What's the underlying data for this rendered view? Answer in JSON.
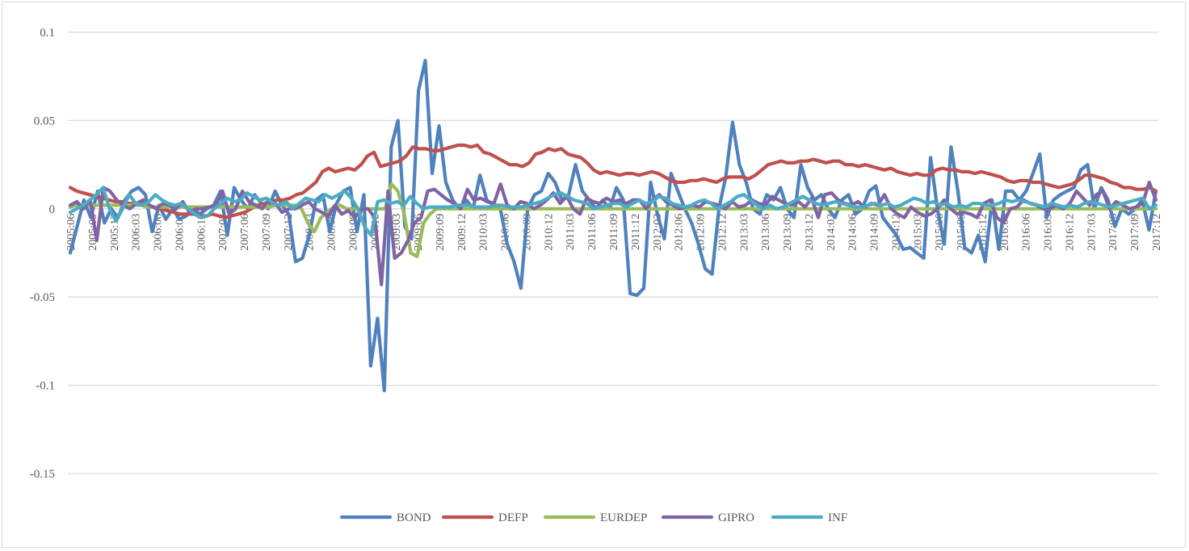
{
  "chart_data": {
    "type": "line",
    "title": "",
    "xlabel": "",
    "ylabel": "",
    "ylim": [
      -0.15,
      0.1
    ],
    "yticks": [
      "0.1",
      "0.05",
      "0",
      "-0.05",
      "-0.1",
      "-0.15"
    ],
    "ytick_values": [
      0.1,
      0.05,
      0,
      -0.05,
      -0.1,
      -0.15
    ],
    "grid": "horizontal",
    "legend_position": "bottom",
    "x_start": "2005:06",
    "x_end": "2017:12",
    "x_tick_labels": [
      "2005:06",
      "2005:09",
      "2005:12",
      "2006:03",
      "2006:06",
      "2006:09",
      "2006:12",
      "2007:03",
      "2007:06",
      "2007:09",
      "2007:12",
      "2008:03",
      "2008:06",
      "2008:09",
      "2008:12",
      "2009:03",
      "2009:06",
      "2009:09",
      "2009:12",
      "2010:03",
      "2010:06",
      "2010:09",
      "2010:12",
      "2011:03",
      "2011:06",
      "2011:09",
      "2011:12",
      "2012:03",
      "2012:06",
      "2012:09",
      "2012:12",
      "2013:03",
      "2013:06",
      "2013:09",
      "2013:12",
      "2014:03",
      "2014:06",
      "2014:09",
      "2014:12",
      "2015:03",
      "2015:06",
      "2015:09",
      "2015:12",
      "2016:03",
      "2016:06",
      "2016:09",
      "2016:12",
      "2017:03",
      "2017:06",
      "2017:09",
      "2017:12"
    ],
    "series": [
      {
        "name": "BOND",
        "color": "#4f81bd",
        "values": [
          -0.025,
          -0.01,
          0.005,
          -0.005,
          0.01,
          -0.008,
          0.0,
          -0.005,
          0.005,
          0.01,
          0.012,
          0.008,
          -0.013,
          0.002,
          -0.006,
          0.0,
          -0.006,
          -0.004,
          0.0,
          -0.003,
          0.0,
          0.002,
          0.01,
          -0.015,
          0.012,
          0.005,
          0.0,
          0.008,
          0.003,
          0.0,
          0.01,
          0.002,
          -0.003,
          -0.03,
          -0.028,
          -0.015,
          0.005,
          0.008,
          -0.013,
          0.003,
          0.01,
          0.012,
          -0.013,
          0.008,
          -0.089,
          -0.062,
          -0.103,
          0.035,
          0.05,
          -0.01,
          -0.017,
          0.067,
          0.084,
          0.02,
          0.047,
          0.015,
          0.005,
          0.0,
          0.005,
          0.0,
          0.019,
          0.005,
          0.002,
          0.0,
          -0.02,
          -0.03,
          -0.045,
          0.0,
          0.008,
          0.01,
          0.02,
          0.015,
          0.005,
          0.008,
          0.025,
          0.01,
          0.005,
          0.0,
          0.005,
          0.0,
          0.012,
          0.005,
          -0.048,
          -0.049,
          -0.045,
          0.015,
          -0.003,
          -0.017,
          0.02,
          0.01,
          0.0,
          -0.008,
          -0.02,
          -0.034,
          -0.037,
          0.0,
          0.018,
          0.049,
          0.025,
          0.015,
          0.0,
          -0.003,
          0.008,
          0.005,
          0.012,
          0.0,
          -0.005,
          0.025,
          0.012,
          0.005,
          0.008,
          0.0,
          -0.005,
          0.005,
          0.008,
          -0.003,
          0.0,
          0.01,
          0.013,
          -0.005,
          -0.01,
          -0.015,
          -0.023,
          -0.022,
          -0.025,
          -0.028,
          0.029,
          0.0,
          -0.02,
          0.035,
          0.01,
          -0.022,
          -0.025,
          -0.015,
          -0.03,
          0.005,
          -0.023,
          0.01,
          0.01,
          0.005,
          0.01,
          0.02,
          0.031,
          -0.005,
          0.005,
          0.008,
          0.01,
          0.012,
          0.022,
          0.025,
          0.0,
          0.012,
          0.005,
          -0.01,
          0.0,
          -0.003,
          0.0,
          0.005,
          -0.012,
          0.01
        ]
      },
      {
        "name": "DEFP",
        "color": "#c0504d",
        "values": [
          0.012,
          0.01,
          0.009,
          0.008,
          0.007,
          0.006,
          0.005,
          0.004,
          0.004,
          0.003,
          0.003,
          0.003,
          0.002,
          0.001,
          0.0,
          -0.001,
          -0.002,
          -0.003,
          -0.003,
          -0.003,
          -0.004,
          -0.004,
          -0.003,
          -0.004,
          -0.005,
          -0.004,
          -0.003,
          -0.002,
          0.0,
          0.002,
          0.003,
          0.004,
          0.005,
          0.005,
          0.006,
          0.008,
          0.009,
          0.012,
          0.015,
          0.021,
          0.023,
          0.021,
          0.022,
          0.023,
          0.022,
          0.025,
          0.03,
          0.032,
          0.024,
          0.025,
          0.026,
          0.027,
          0.03,
          0.035,
          0.034,
          0.034,
          0.033,
          0.033,
          0.034,
          0.035,
          0.036,
          0.036,
          0.035,
          0.036,
          0.032,
          0.031,
          0.029,
          0.027,
          0.025,
          0.025,
          0.024,
          0.026,
          0.031,
          0.032,
          0.034,
          0.033,
          0.034,
          0.031,
          0.03,
          0.029,
          0.026,
          0.022,
          0.02,
          0.021,
          0.02,
          0.019,
          0.02,
          0.02,
          0.019,
          0.02,
          0.021,
          0.02,
          0.018,
          0.016,
          0.015,
          0.015,
          0.016,
          0.016,
          0.017,
          0.016,
          0.015,
          0.017,
          0.018,
          0.018,
          0.018,
          0.017,
          0.019,
          0.022,
          0.025,
          0.026,
          0.027,
          0.026,
          0.026,
          0.027,
          0.027,
          0.028,
          0.027,
          0.026,
          0.027,
          0.027,
          0.025,
          0.025,
          0.024,
          0.025,
          0.024,
          0.023,
          0.022,
          0.023,
          0.021,
          0.02,
          0.019,
          0.02,
          0.019,
          0.019,
          0.022,
          0.023,
          0.022,
          0.022,
          0.021,
          0.021,
          0.02,
          0.021,
          0.02,
          0.019,
          0.018,
          0.016,
          0.015,
          0.016,
          0.016,
          0.015,
          0.015,
          0.014,
          0.013,
          0.012,
          0.013,
          0.014,
          0.016,
          0.019,
          0.019,
          0.018,
          0.017,
          0.015,
          0.014,
          0.012,
          0.012,
          0.011,
          0.011,
          0.012,
          0.01
        ]
      },
      {
        "name": "EURDEP",
        "color": "#9bbb59",
        "values": [
          0.001,
          0.002,
          0.002,
          0.002,
          0.002,
          0.002,
          0.002,
          0.002,
          0.002,
          0.002,
          0.002,
          0.002,
          0.001,
          0.001,
          0.001,
          0.001,
          0.001,
          0.001,
          0.001,
          0.001,
          0.001,
          0.001,
          0.001,
          0.001,
          0.001,
          0.001,
          0.001,
          0.001,
          0.001,
          0.001,
          0.001,
          0.001,
          0.002,
          0.002,
          0.002,
          0.002,
          0.0,
          -0.008,
          -0.013,
          -0.005,
          -0.002,
          0.001,
          0.002,
          0.0,
          0.0,
          0.0,
          0.0,
          0.0,
          0.0,
          0.0,
          0.014,
          0.01,
          -0.003,
          -0.025,
          -0.027,
          -0.008,
          -0.003,
          0.0,
          0.0,
          0.0,
          0.0,
          0.0,
          0.0,
          0.0,
          0.0,
          0.0,
          0.0,
          0.0,
          0.0,
          0.0,
          0.0,
          0.0,
          0.0,
          0.0,
          0.0,
          0.0,
          0.0,
          0.0,
          0.0,
          0.0,
          0.0,
          0.0,
          0.0,
          0.0,
          0.0,
          0.0,
          0.0,
          0.0,
          0.0,
          0.0,
          0.0,
          0.0,
          0.0,
          0.0,
          0.0,
          0.0,
          0.0,
          0.0,
          0.0,
          0.0,
          0.0,
          0.0,
          0.0,
          0.0,
          0.0,
          0.0,
          0.0,
          0.0,
          0.0,
          0.0,
          0.0,
          0.0,
          0.0,
          0.0,
          0.0,
          0.0,
          0.0,
          0.0,
          0.0,
          0.0,
          0.0,
          0.0,
          0.0,
          0.0,
          0.0,
          0.0,
          0.0,
          0.0,
          0.0,
          0.0,
          0.0,
          0.0,
          0.0,
          0.0,
          0.0,
          0.0,
          0.0,
          0.0,
          0.0,
          0.0,
          0.0,
          0.0,
          0.0,
          0.0,
          0.0,
          0.0,
          0.0,
          0.0,
          0.0,
          0.0,
          0.0,
          0.0,
          0.0,
          0.0,
          0.0,
          0.0,
          0.0,
          0.0,
          0.0,
          0.0,
          0.0,
          0.0,
          0.0,
          0.0,
          0.0,
          0.0,
          0.0,
          0.0,
          0.0,
          0.0
        ]
      },
      {
        "name": "GIPRO",
        "color": "#8064a2",
        "values": [
          0.002,
          0.004,
          0.0,
          0.005,
          -0.018,
          0.012,
          0.01,
          0.005,
          0.002,
          0.0,
          0.003,
          0.005,
          0.002,
          0.0,
          0.003,
          0.002,
          0.0,
          0.004,
          -0.002,
          0.0,
          0.0,
          0.001,
          0.002,
          0.01,
          -0.003,
          0.0,
          0.01,
          0.004,
          0.002,
          0.0,
          0.005,
          0.003,
          -0.002,
          0.0,
          0.0,
          0.002,
          0.004,
          0.0,
          -0.002,
          -0.004,
          0.002,
          -0.003,
          -0.001,
          -0.005,
          0.0,
          0.0,
          -0.005,
          -0.043,
          0.01,
          -0.028,
          -0.025,
          -0.018,
          -0.008,
          -0.005,
          0.01,
          0.011,
          0.008,
          0.005,
          0.003,
          0.0,
          0.011,
          0.005,
          0.006,
          0.004,
          0.003,
          0.014,
          0.002,
          0.0,
          0.004,
          0.003,
          0.0,
          0.002,
          0.005,
          0.009,
          0.003,
          0.007,
          0.0,
          -0.003,
          0.006,
          0.004,
          0.003,
          0.006,
          0.004,
          0.005,
          0.003,
          0.005,
          0.005,
          0.0,
          0.005,
          0.008,
          0.004,
          0.002,
          0.0,
          0.001,
          0.002,
          0.001,
          0.004,
          0.003,
          0.002,
          0.0,
          0.004,
          0.001,
          0.002,
          0.005,
          0.003,
          0.002,
          0.007,
          0.005,
          0.003,
          0.002,
          0.004,
          0.001,
          0.006,
          -0.005,
          0.008,
          0.009,
          0.005,
          0.003,
          0.002,
          0.004,
          0.001,
          0.003,
          0.002,
          0.008,
          0.0,
          -0.003,
          -0.005,
          0.001,
          -0.002,
          -0.004,
          -0.003,
          0.0,
          0.005,
          0.0,
          -0.003,
          -0.002,
          -0.003,
          -0.005,
          0.003,
          0.005,
          -0.005,
          -0.008,
          0.0,
          0.001,
          0.005,
          0.003,
          0.002,
          0.0,
          0.0,
          0.002,
          0.0,
          0.003,
          0.01,
          0.006,
          0.002,
          0.008,
          0.01,
          0.0,
          0.004,
          0.002,
          0.0,
          0.001,
          0.003,
          0.015,
          0.005
        ]
      },
      {
        "name": "INF",
        "color": "#4bacc6",
        "values": [
          -0.002,
          0.0,
          0.002,
          0.005,
          0.008,
          0.012,
          0.0,
          -0.007,
          0.0,
          0.008,
          0.003,
          0.002,
          0.004,
          0.008,
          0.005,
          0.003,
          0.002,
          0.003,
          0.0,
          -0.003,
          -0.005,
          -0.004,
          0.0,
          0.003,
          0.006,
          0.004,
          0.005,
          0.009,
          0.007,
          0.005,
          0.006,
          0.003,
          0.002,
          0.004,
          0.0,
          0.003,
          0.006,
          0.005,
          0.004,
          0.008,
          0.006,
          0.008,
          0.01,
          0.006,
          0.0,
          -0.01,
          -0.015,
          0.004,
          0.005,
          0.003,
          0.004,
          0.002,
          0.007,
          0.003,
          0.0,
          0.001,
          0.001,
          0.001,
          0.001,
          0.002,
          0.002,
          0.002,
          0.001,
          0.001,
          0.001,
          0.002,
          0.002,
          0.001,
          0.001,
          0.001,
          0.002,
          0.003,
          0.004,
          0.006,
          0.008,
          0.009,
          0.007,
          0.005,
          0.004,
          0.003,
          0.0,
          0.001,
          0.002,
          0.003,
          0.003,
          0.001,
          0.003,
          0.005,
          0.003,
          0.004,
          0.007,
          0.006,
          0.003,
          0.002,
          0.001,
          0.002,
          0.004,
          0.005,
          0.003,
          0.0,
          0.002,
          0.004,
          0.007,
          0.008,
          0.005,
          0.002,
          0.0,
          0.002,
          0.0,
          0.001,
          0.003,
          0.005,
          0.007,
          0.005,
          0.003,
          0.002,
          0.003,
          0.004,
          0.003,
          0.002,
          0.001,
          0.001,
          0.002,
          0.003,
          0.002,
          0.003,
          0.001,
          0.002,
          0.004,
          0.006,
          0.005,
          0.003,
          0.004,
          0.002,
          0.003,
          0.001,
          0.002,
          0.001,
          0.003,
          0.003,
          0.002,
          0.002,
          0.003,
          0.005,
          0.004,
          0.005,
          0.004,
          0.003,
          0.002,
          0.001,
          0.003,
          0.002,
          0.001,
          0.002,
          0.001,
          0.003,
          0.004,
          0.003,
          0.002,
          0.001,
          0.002,
          0.003,
          0.004,
          0.005,
          0.006,
          0.0,
          0.002
        ]
      }
    ]
  }
}
